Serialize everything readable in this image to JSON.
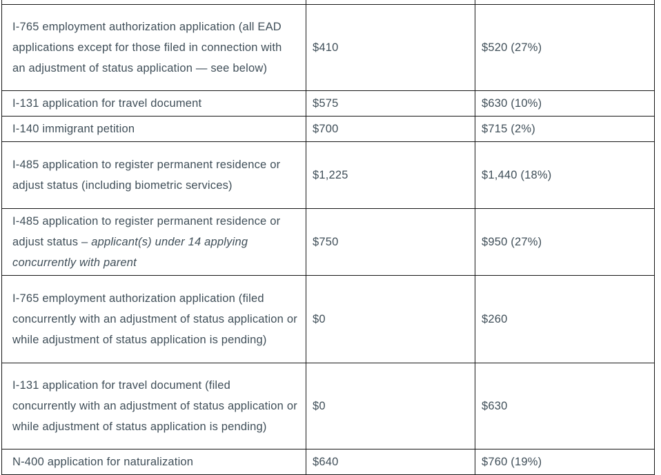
{
  "page": {
    "background": "#ffffff",
    "text_color": "#3f4e58",
    "border_color": "#141414"
  },
  "table": {
    "rows": [
      {
        "desc": "I-765 employment authorization application (all EAD applications except for those filed in connection with an adjustment of status application — see below)",
        "old_fee": "$410",
        "new_fee": "$520 (27%)"
      },
      {
        "desc": "I-131 application for travel document",
        "old_fee": "$575",
        "new_fee": "$630 (10%)"
      },
      {
        "desc": "I-140 immigrant petition",
        "old_fee": "$700",
        "new_fee": "$715 (2%)"
      },
      {
        "desc": "I-485 application to register permanent residence or adjust status (including biometric services)",
        "old_fee": "$1,225",
        "new_fee": "$1,440 (18%)"
      },
      {
        "desc": "I-485 application to register permanent residence or adjust status – ",
        "desc_italic": "applicant(s) under 14 applying concurrently with parent",
        "old_fee": "$750",
        "new_fee": "$950 (27%)"
      },
      {
        "desc": "I-765 employment authorization application (filed concurrently with an adjustment of status application or while adjustment of status application is pending)",
        "old_fee": "$0",
        "new_fee": "$260"
      },
      {
        "desc": "I-131 application for travel document (filed concurrently with an adjustment of status application or while adjustment of status application is pending)",
        "old_fee": "$0",
        "new_fee": "$630"
      },
      {
        "desc": "N-400 application for naturalization",
        "old_fee": "$640",
        "new_fee": "$760 (19%)"
      }
    ]
  }
}
